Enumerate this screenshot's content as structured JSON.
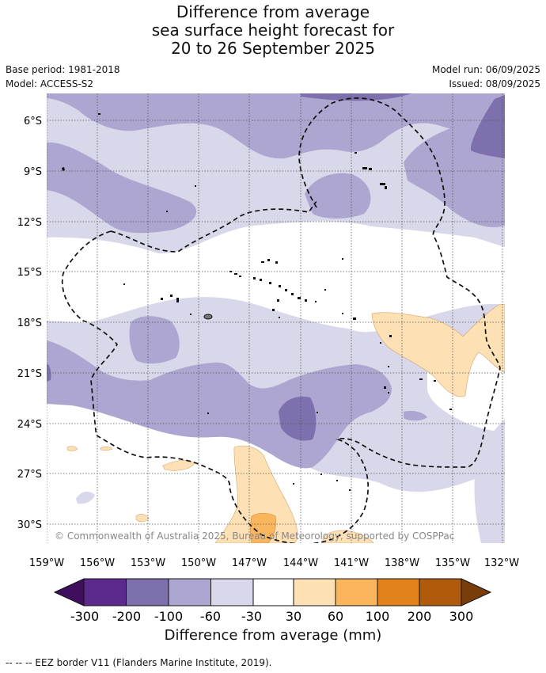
{
  "title": {
    "line1": "Difference from average",
    "line2": "sea surface height forecast for",
    "line3": "20 to 26 September 2025"
  },
  "meta": {
    "base_period": "Base period: 1981-2018",
    "model": "Model: ACCESS-S2",
    "model_run": "Model run: 06/09/2025",
    "issued": "Issued: 08/09/2025"
  },
  "map": {
    "lat_labels": [
      "6°S",
      "9°S",
      "12°S",
      "15°S",
      "18°S",
      "21°S",
      "24°S",
      "27°S",
      "30°S"
    ],
    "lon_labels": [
      "159°W",
      "156°W",
      "153°W",
      "150°W",
      "147°W",
      "144°W",
      "141°W",
      "138°W",
      "135°W",
      "132°W"
    ],
    "copyright": "© Commonwealth of Australia 2025, Bureau of Meteorology, supported by COSPPac"
  },
  "colorbar": {
    "labels": [
      "-300",
      "-200",
      "-100",
      "-60",
      "-30",
      "30",
      "60",
      "100",
      "200",
      "300"
    ],
    "colors": [
      "#3f0f5e",
      "#5a2a8c",
      "#7d70ad",
      "#aca6d0",
      "#d8d8ea",
      "#ffffff",
      "#fde0b4",
      "#fbb55c",
      "#e3821a",
      "#b05a0c",
      "#7a3c08"
    ],
    "title": "Difference from average (mm)"
  },
  "footer": "--  --  -- EEZ border V11 (Flanders Marine Institute, 2019)."
}
